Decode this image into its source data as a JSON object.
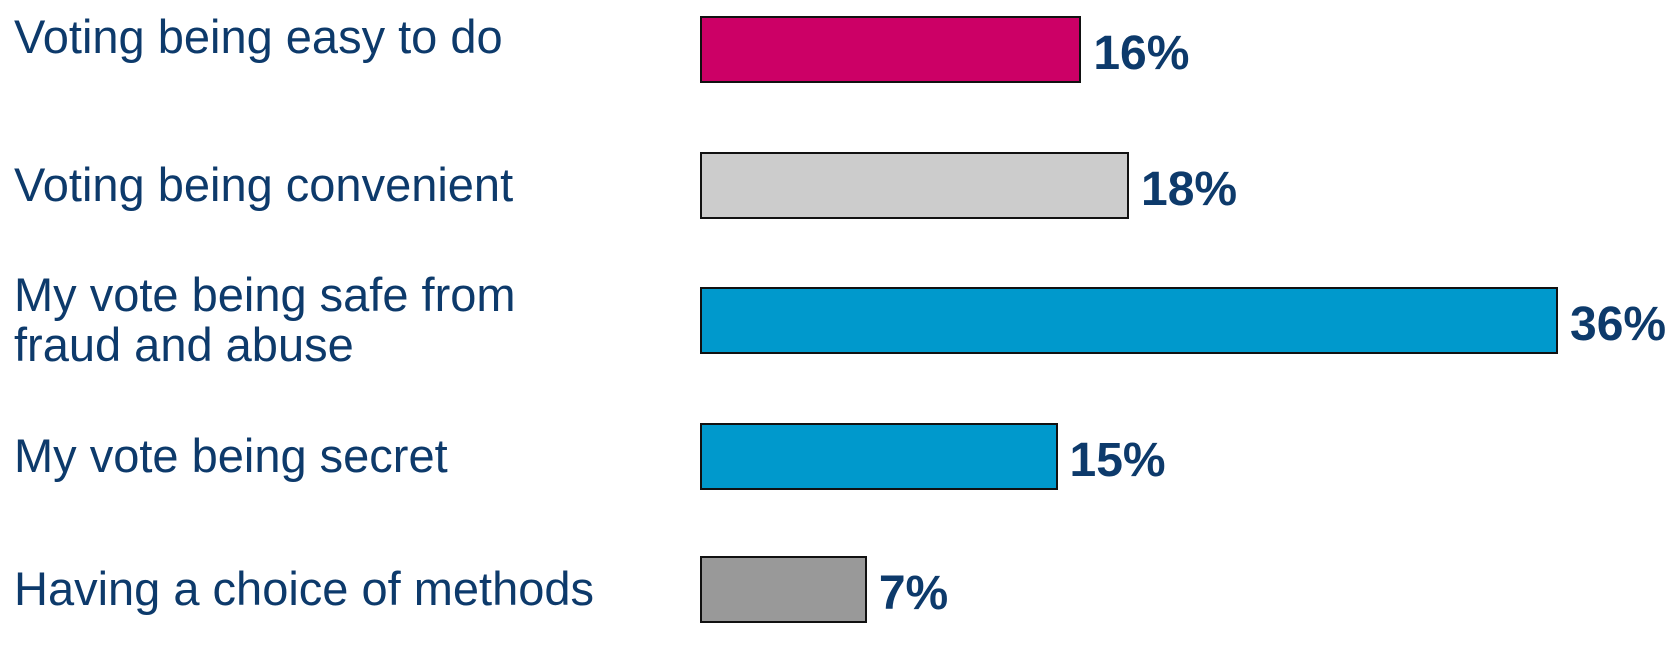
{
  "chart_data": {
    "type": "hbar",
    "categories": [
      "Voting being easy to do",
      "Voting being convenient",
      "My vote being safe from\nfraud and abuse",
      "My vote being secret",
      "Having a choice of methods"
    ],
    "values": [
      16,
      18,
      36,
      15,
      7
    ],
    "value_labels": [
      "16%",
      "18%",
      "36%",
      "15%",
      "7%"
    ],
    "colors": [
      "#cc0066",
      "#cccccc",
      "#0099cc",
      "#0099cc",
      "#999999"
    ]
  }
}
